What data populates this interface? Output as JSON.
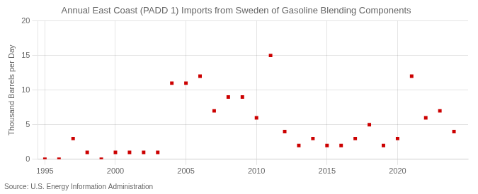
{
  "chart_data": {
    "type": "scatter",
    "title": "Annual East Coast (PADD 1) Imports from Sweden of Gasoline Blending Components",
    "ylabel": "Thousand Barrels per Day",
    "source": "Source: U.S. Energy Information Administration",
    "x": [
      1995,
      1996,
      1997,
      1998,
      1999,
      2000,
      2001,
      2002,
      2003,
      2004,
      2005,
      2006,
      2007,
      2008,
      2009,
      2010,
      2011,
      2012,
      2013,
      2014,
      2015,
      2016,
      2017,
      2018,
      2019,
      2020,
      2021,
      2022,
      2023,
      2024
    ],
    "values": [
      0,
      0,
      3,
      1,
      0,
      1,
      1,
      1,
      1,
      11,
      11,
      12,
      7,
      9,
      9,
      6,
      15,
      4,
      2,
      3,
      2,
      2,
      3,
      5,
      2,
      3,
      12,
      6,
      7,
      4
    ],
    "color": "#cc0000",
    "marker": "square",
    "xlim": [
      1994.5,
      2025
    ],
    "xticks": [
      1995,
      2000,
      2005,
      2010,
      2015,
      2020
    ],
    "ylim": [
      0,
      20
    ],
    "yticks": [
      0,
      5,
      10,
      15,
      20
    ],
    "grid": true
  }
}
